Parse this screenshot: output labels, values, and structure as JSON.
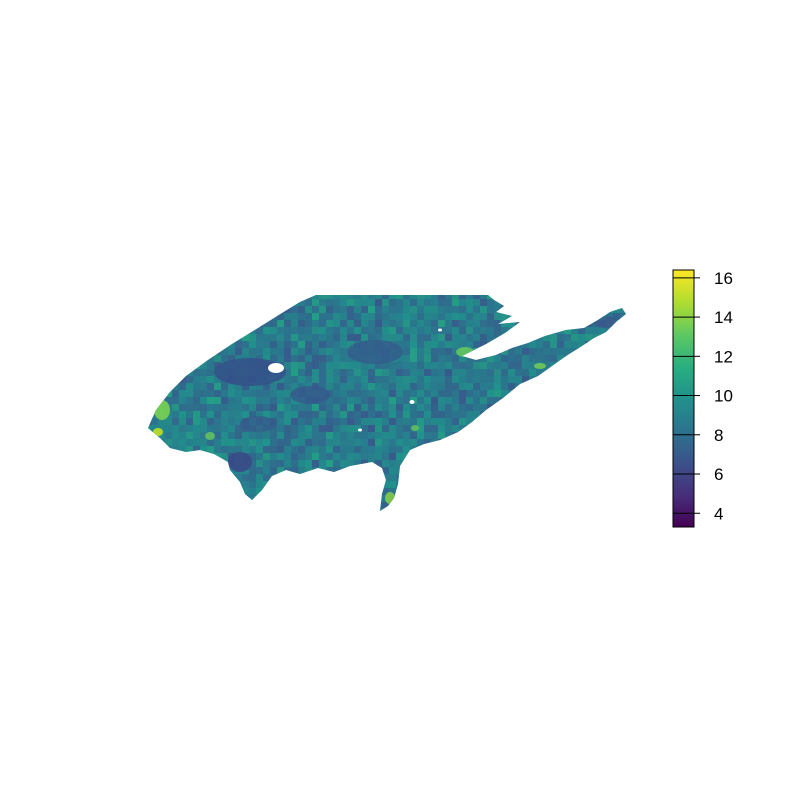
{
  "map": {
    "palette": {
      "low": "#440154",
      "mid_low": "#31688e",
      "mid": "#21918c",
      "mid_high": "#35b779",
      "high": "#fde725",
      "background": "#ffffff"
    }
  },
  "legend": {
    "min": 3.3,
    "max": 16.4,
    "ticks": [
      {
        "value": 4,
        "label": "4"
      },
      {
        "value": 6,
        "label": "6"
      },
      {
        "value": 8,
        "label": "8"
      },
      {
        "value": 10,
        "label": "10"
      },
      {
        "value": 12,
        "label": "12"
      },
      {
        "value": 14,
        "label": "14"
      },
      {
        "value": 16,
        "label": "16"
      }
    ]
  }
}
